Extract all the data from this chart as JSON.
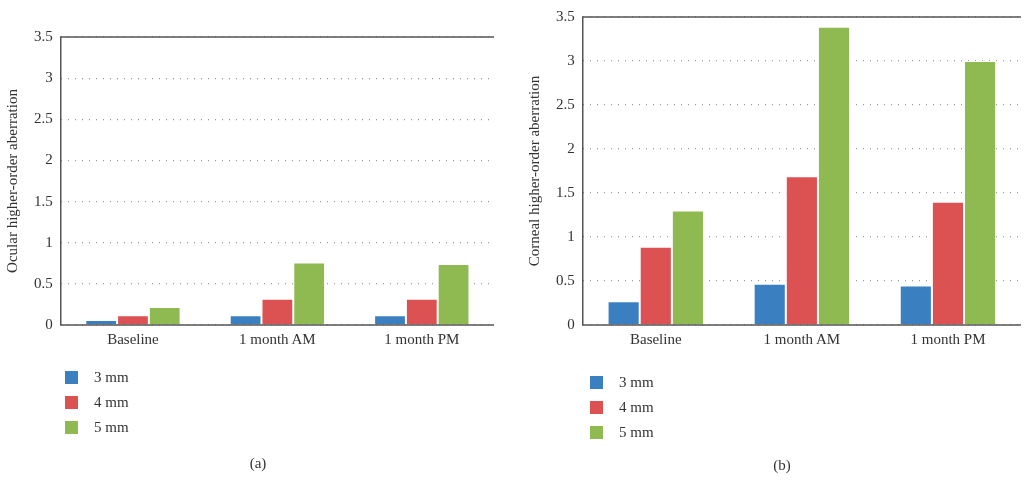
{
  "chart_data": [
    {
      "type": "bar",
      "ylabel": "Ocular higher-order aberration",
      "categories": [
        "Baseline",
        "1 month AM",
        "1 month PM"
      ],
      "series": [
        {
          "name": "3 mm",
          "color": "#3a80c1",
          "values": [
            0.06,
            0.12,
            0.12
          ]
        },
        {
          "name": "4 mm",
          "color": "#dc5252",
          "values": [
            0.12,
            0.32,
            0.32
          ]
        },
        {
          "name": "5 mm",
          "color": "#8fba52",
          "values": [
            0.22,
            0.76,
            0.74
          ]
        }
      ],
      "ylim": [
        0,
        3.5
      ],
      "yticks": [
        0,
        0.5,
        1,
        1.5,
        2,
        2.5,
        3,
        3.5
      ],
      "grid": "y",
      "legend": "bottom left",
      "annotations": [
        "(a)"
      ]
    },
    {
      "type": "bar",
      "ylabel": "Corneal higher-order aberration",
      "categories": [
        "Baseline",
        "1 month AM",
        "1 month PM"
      ],
      "series": [
        {
          "name": "3 mm",
          "color": "#3a80c1",
          "values": [
            0.27,
            0.47,
            0.45
          ]
        },
        {
          "name": "4 mm",
          "color": "#dc5252",
          "values": [
            0.89,
            1.69,
            1.4
          ]
        },
        {
          "name": "5 mm",
          "color": "#8fba52",
          "values": [
            1.3,
            3.39,
            3.0
          ]
        }
      ],
      "ylim": [
        0,
        3.5
      ],
      "yticks": [
        0,
        0.5,
        1,
        1.5,
        2,
        2.5,
        3,
        3.5
      ],
      "grid": "y",
      "legend": "bottom left",
      "annotations": [
        "(b)"
      ]
    }
  ]
}
